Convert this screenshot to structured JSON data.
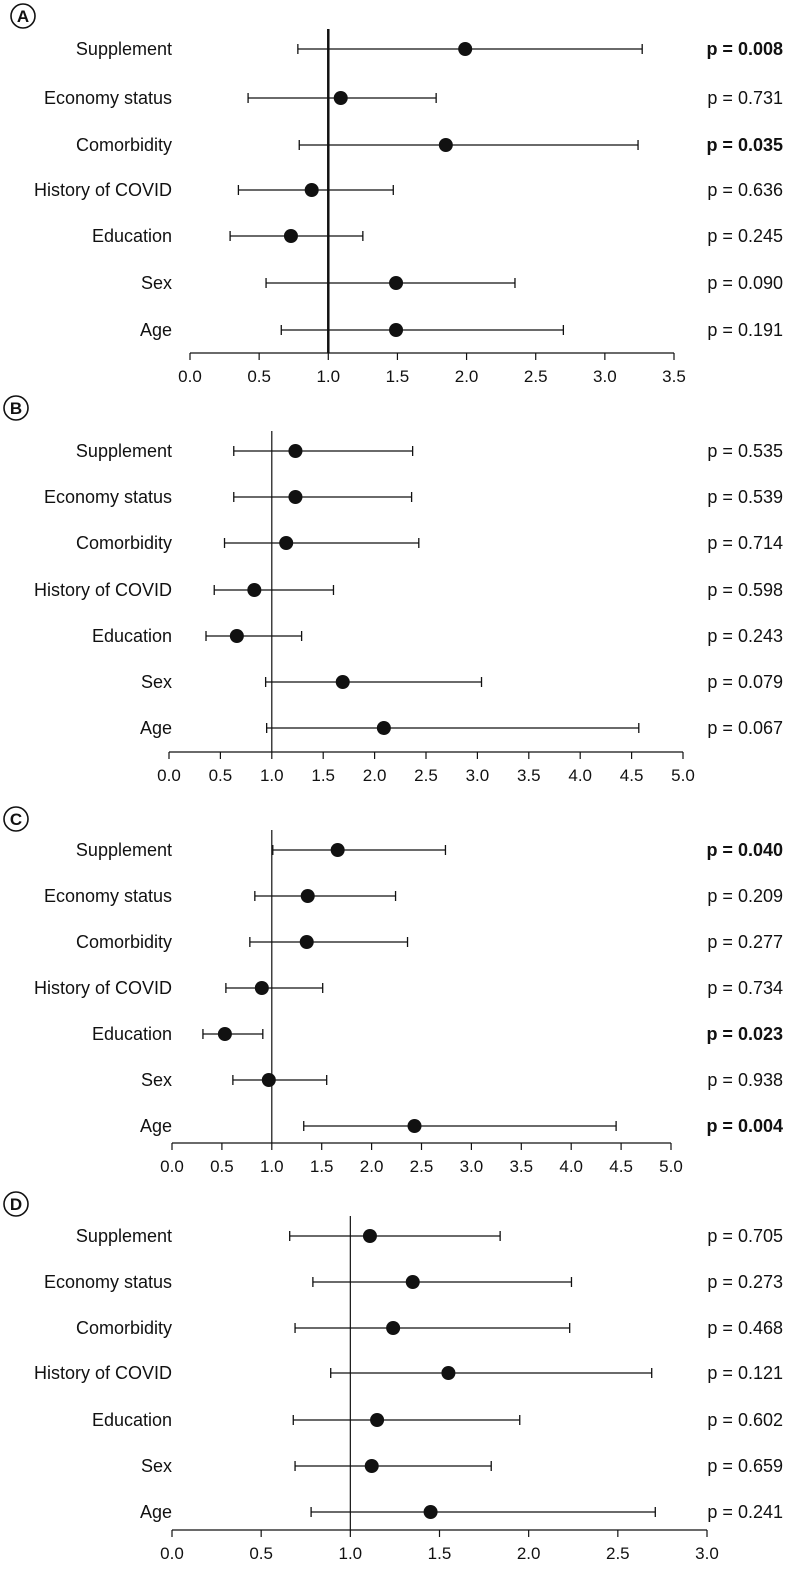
{
  "chart_data": [
    {
      "type": "forest",
      "panel_label": "A",
      "title": "",
      "xlabel": "",
      "ylabel": "",
      "reference_line": 1.0,
      "xlim": [
        0.0,
        3.5
      ],
      "xticks": [
        "0.0",
        "0.5",
        "1.0",
        "1.5",
        "2.0",
        "2.5",
        "3.0",
        "3.5"
      ],
      "rows": [
        {
          "label": "Supplement",
          "estimate": 1.99,
          "ci_low": 0.78,
          "ci_high": 3.27,
          "p_text": "p = 0.008",
          "significant": true
        },
        {
          "label": "Economy status",
          "estimate": 1.09,
          "ci_low": 0.42,
          "ci_high": 1.78,
          "p_text": "p = 0.731",
          "significant": false
        },
        {
          "label": "Comorbidity",
          "estimate": 1.85,
          "ci_low": 0.79,
          "ci_high": 3.24,
          "p_text": "p = 0.035",
          "significant": true
        },
        {
          "label": "History of COVID",
          "estimate": 0.88,
          "ci_low": 0.35,
          "ci_high": 1.47,
          "p_text": "p = 0.636",
          "significant": false
        },
        {
          "label": "Education",
          "estimate": 0.73,
          "ci_low": 0.29,
          "ci_high": 1.25,
          "p_text": "p = 0.245",
          "significant": false
        },
        {
          "label": "Sex",
          "estimate": 1.49,
          "ci_low": 0.55,
          "ci_high": 2.35,
          "p_text": "p = 0.090",
          "significant": false
        },
        {
          "label": "Age",
          "estimate": 1.49,
          "ci_low": 0.66,
          "ci_high": 2.7,
          "p_text": "p = 0.191",
          "significant": false
        }
      ]
    },
    {
      "type": "forest",
      "panel_label": "B",
      "title": "",
      "xlabel": "",
      "ylabel": "",
      "reference_line": 1.0,
      "xlim": [
        0.0,
        5.0
      ],
      "xticks": [
        "0.0",
        "0.5",
        "1.0",
        "1.5",
        "2.0",
        "2.5",
        "3.0",
        "3.5",
        "4.0",
        "4.5",
        "5.0"
      ],
      "rows": [
        {
          "label": "Supplement",
          "estimate": 1.23,
          "ci_low": 0.63,
          "ci_high": 2.37,
          "p_text": "p = 0.535",
          "significant": false
        },
        {
          "label": "Economy status",
          "estimate": 1.23,
          "ci_low": 0.63,
          "ci_high": 2.36,
          "p_text": "p = 0.539",
          "significant": false
        },
        {
          "label": "Comorbidity",
          "estimate": 1.14,
          "ci_low": 0.54,
          "ci_high": 2.43,
          "p_text": "p = 0.714",
          "significant": false
        },
        {
          "label": "History of COVID",
          "estimate": 0.83,
          "ci_low": 0.44,
          "ci_high": 1.6,
          "p_text": "p = 0.598",
          "significant": false
        },
        {
          "label": "Education",
          "estimate": 0.66,
          "ci_low": 0.36,
          "ci_high": 1.29,
          "p_text": "p = 0.243",
          "significant": false
        },
        {
          "label": "Sex",
          "estimate": 1.69,
          "ci_low": 0.94,
          "ci_high": 3.04,
          "p_text": "p = 0.079",
          "significant": false
        },
        {
          "label": "Age",
          "estimate": 2.09,
          "ci_low": 0.95,
          "ci_high": 4.57,
          "p_text": "p = 0.067",
          "significant": false
        }
      ]
    },
    {
      "type": "forest",
      "panel_label": "C",
      "title": "",
      "xlabel": "",
      "ylabel": "",
      "reference_line": 1.0,
      "xlim": [
        0.0,
        5.0
      ],
      "xticks": [
        "0.0",
        "0.5",
        "1.0",
        "1.5",
        "2.0",
        "2.5",
        "3.0",
        "3.5",
        "4.0",
        "4.5",
        "5.0"
      ],
      "rows": [
        {
          "label": "Supplement",
          "estimate": 1.66,
          "ci_low": 1.01,
          "ci_high": 2.74,
          "p_text": "p = 0.040",
          "significant": true
        },
        {
          "label": "Economy status",
          "estimate": 1.36,
          "ci_low": 0.83,
          "ci_high": 2.24,
          "p_text": "p = 0.209",
          "significant": false
        },
        {
          "label": "Comorbidity",
          "estimate": 1.35,
          "ci_low": 0.78,
          "ci_high": 2.36,
          "p_text": "p = 0.277",
          "significant": false
        },
        {
          "label": "History of COVID",
          "estimate": 0.9,
          "ci_low": 0.54,
          "ci_high": 1.51,
          "p_text": "p = 0.734",
          "significant": false
        },
        {
          "label": "Education",
          "estimate": 0.53,
          "ci_low": 0.31,
          "ci_high": 0.91,
          "p_text": "p = 0.023",
          "significant": true
        },
        {
          "label": "Sex",
          "estimate": 0.97,
          "ci_low": 0.61,
          "ci_high": 1.55,
          "p_text": "p = 0.938",
          "significant": false
        },
        {
          "label": "Age",
          "estimate": 2.43,
          "ci_low": 1.32,
          "ci_high": 4.45,
          "p_text": "p = 0.004",
          "significant": true
        }
      ]
    },
    {
      "type": "forest",
      "panel_label": "D",
      "title": "",
      "xlabel": "",
      "ylabel": "",
      "reference_line": 1.0,
      "xlim": [
        0.0,
        3.0
      ],
      "xticks": [
        "0.0",
        "0.5",
        "1.0",
        "1.5",
        "2.0",
        "2.5",
        "3.0"
      ],
      "rows": [
        {
          "label": "Supplement",
          "estimate": 1.11,
          "ci_low": 0.66,
          "ci_high": 1.84,
          "p_text": "p = 0.705",
          "significant": false
        },
        {
          "label": "Economy status",
          "estimate": 1.35,
          "ci_low": 0.79,
          "ci_high": 2.24,
          "p_text": "p = 0.273",
          "significant": false
        },
        {
          "label": "Comorbidity",
          "estimate": 1.24,
          "ci_low": 0.69,
          "ci_high": 2.23,
          "p_text": "p = 0.468",
          "significant": false
        },
        {
          "label": "History of COVID",
          "estimate": 1.55,
          "ci_low": 0.89,
          "ci_high": 2.69,
          "p_text": "p = 0.121",
          "significant": false
        },
        {
          "label": "Education",
          "estimate": 1.15,
          "ci_low": 0.68,
          "ci_high": 1.95,
          "p_text": "p = 0.602",
          "significant": false
        },
        {
          "label": "Sex",
          "estimate": 1.12,
          "ci_low": 0.69,
          "ci_high": 1.79,
          "p_text": "p = 0.659",
          "significant": false
        },
        {
          "label": "Age",
          "estimate": 1.45,
          "ci_low": 0.78,
          "ci_high": 2.71,
          "p_text": "p = 0.241",
          "significant": false
        }
      ]
    }
  ]
}
